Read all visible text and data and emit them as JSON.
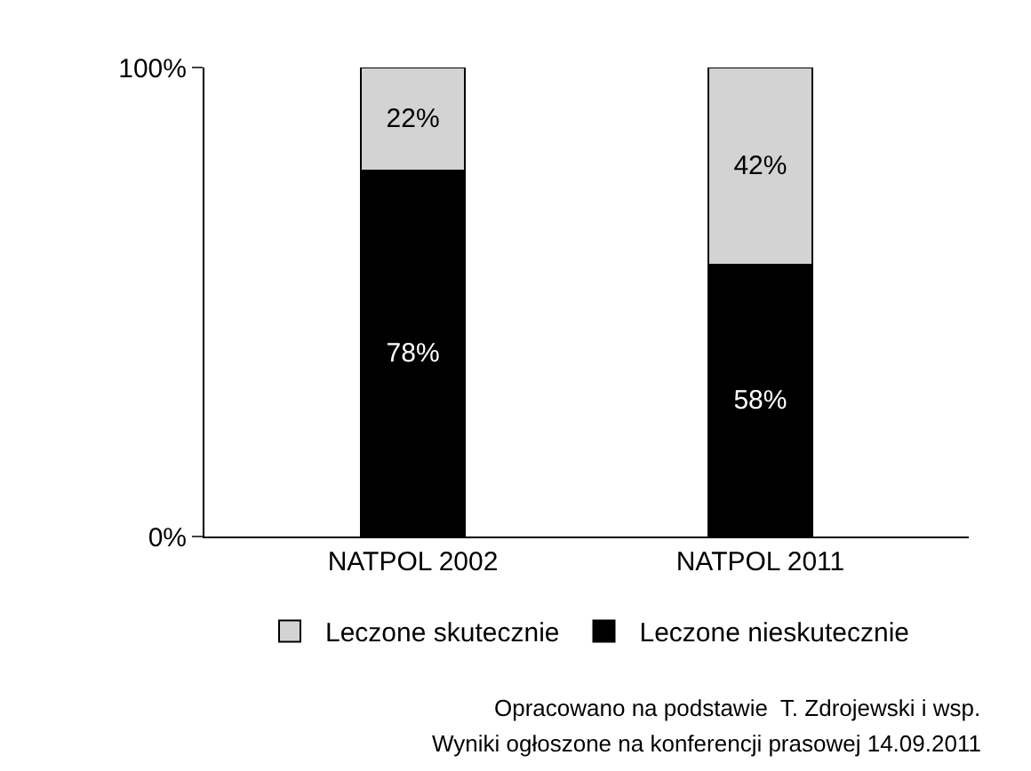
{
  "chart_data": {
    "type": "bar",
    "stacked": true,
    "categories": [
      "NATPOL 2002",
      "NATPOL 2011"
    ],
    "series": [
      {
        "name": "Leczone nieskutecznie",
        "color": "#000000",
        "values": [
          78,
          58
        ],
        "value_labels": [
          "78%",
          "58%"
        ]
      },
      {
        "name": "Leczone skutecznie",
        "color": "#d3d3d3",
        "values": [
          22,
          42
        ],
        "value_labels": [
          "22%",
          "42%"
        ]
      }
    ],
    "ylim": [
      0,
      100
    ],
    "yticks": [
      {
        "value": 0,
        "label": "0%"
      },
      {
        "value": 100,
        "label": "100%"
      }
    ],
    "legend": "bottom",
    "annotations": [
      "Opracowano na podstawie  T. Zdrojewski i wsp.",
      "Wyniki ogłoszone na konferencji prasowej 14.09.2011"
    ]
  }
}
